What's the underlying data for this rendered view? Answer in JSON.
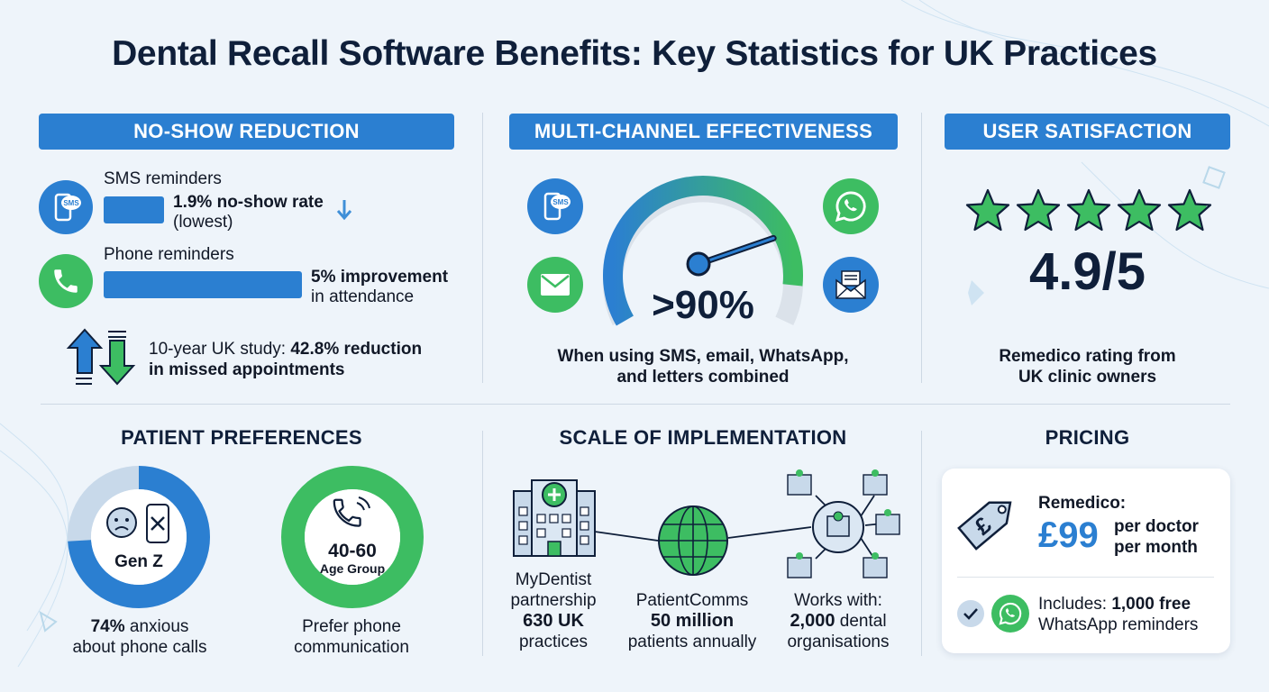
{
  "title": "Dental Recall Software Benefits: Key Statistics for UK Practices",
  "colors": {
    "primary_blue": "#2b7fd1",
    "green": "#3dbd62",
    "navy": "#0f1f3a"
  },
  "no_show": {
    "header": "NO-SHOW REDUCTION",
    "sms": {
      "label": "SMS reminders",
      "stat": "1.9% no-show rate",
      "note": "(lowest)",
      "icon": "sms-phone-icon"
    },
    "phone": {
      "label": "Phone reminders",
      "stat": "5% improvement",
      "note": "in attendance",
      "icon": "phone-icon"
    },
    "study": {
      "prefix": "10-year UK study:",
      "stat": "42.8% reduction",
      "rest": "in missed appointments"
    }
  },
  "multichannel": {
    "header": "MULTI-CHANNEL EFFECTIVENESS",
    "value": ">90%",
    "fraction": 0.9,
    "caption_line1": "When using SMS, email, WhatsApp,",
    "caption_line2": "and letters combined"
  },
  "satisfaction": {
    "header": "USER SATISFACTION",
    "rating": "4.9/5",
    "stars": 4.9,
    "caption_line1": "Remedico rating from",
    "caption_line2": "UK clinic owners"
  },
  "preferences": {
    "header": "PATIENT PREFERENCES",
    "genz": {
      "label": "Gen Z",
      "fraction": 0.74,
      "stat": "74%",
      "text1": "anxious",
      "text2": "about phone calls"
    },
    "age": {
      "label": "40-60",
      "sub": "Age Group",
      "text1": "Prefer phone",
      "text2": "communication"
    }
  },
  "scale": {
    "header": "SCALE OF IMPLEMENTATION",
    "mydentist": {
      "l1": "MyDentist",
      "l2": "partnership",
      "stat": "630 UK",
      "l3": "practices"
    },
    "patientcomms": {
      "l1": "PatientComms",
      "stat": "50 million",
      "l2": "patients annually"
    },
    "works": {
      "l1": "Works with:",
      "stat": "2,000",
      "l2": "dental",
      "l3": "organisations"
    }
  },
  "pricing": {
    "header": "PRICING",
    "name": "Remedico:",
    "price": "£99",
    "per1": "per doctor",
    "per2": "per month",
    "includes": "Includes:",
    "free": "1,000 free",
    "free2": "WhatsApp reminders",
    "tag_symbol": "£"
  }
}
